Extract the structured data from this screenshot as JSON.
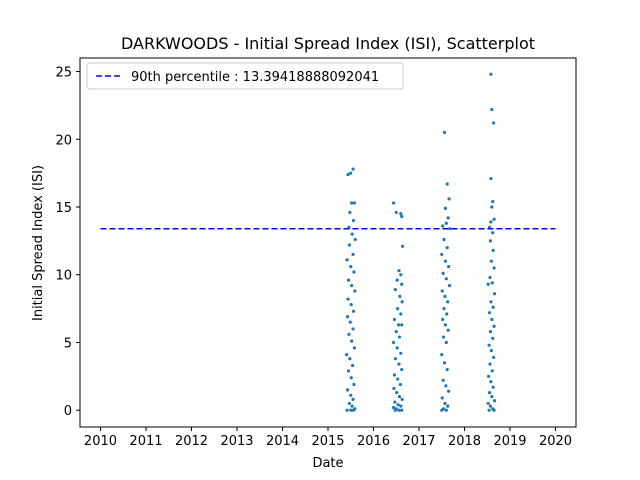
{
  "chart_data": {
    "type": "scatter",
    "title": "DARKWOODS - Initial Spread Index (ISI), Scatterplot",
    "xlabel": "Date",
    "ylabel": "Initial Spread Index (ISI)",
    "xlim": [
      2009.55,
      2020.45
    ],
    "ylim": [
      -1.24,
      26.0
    ],
    "xticks": [
      2010,
      2011,
      2012,
      2013,
      2014,
      2015,
      2016,
      2017,
      2018,
      2019,
      2020
    ],
    "xtick_labels": [
      "2010",
      "2011",
      "2012",
      "2013",
      "2014",
      "2015",
      "2016",
      "2017",
      "2018",
      "2019",
      "2020"
    ],
    "yticks": [
      0,
      5,
      10,
      15,
      20,
      25
    ],
    "ytick_labels": [
      "0",
      "5",
      "10",
      "15",
      "20",
      "25"
    ],
    "grid": false,
    "legend": {
      "position": "top-left",
      "entries": [
        "90th percentile : 13.39418888092041"
      ]
    },
    "reference_line": {
      "y": 13.39418888092041,
      "x_range": [
        2010,
        2020
      ],
      "color": "#0000ff",
      "style": "dashed"
    },
    "marker_color": "#1f77b4",
    "series": [
      {
        "points": [
          [
            2015.44,
            17.4
          ],
          [
            2015.5,
            17.5
          ],
          [
            2015.55,
            17.8
          ],
          [
            2015.52,
            15.3
          ],
          [
            2015.58,
            15.3
          ],
          [
            2015.48,
            14.6
          ],
          [
            2015.56,
            14.0
          ],
          [
            2015.46,
            13.5
          ],
          [
            2015.53,
            13.0
          ],
          [
            2015.6,
            12.6
          ],
          [
            2015.47,
            12.2
          ],
          [
            2015.55,
            11.5
          ],
          [
            2015.42,
            11.1
          ],
          [
            2015.5,
            10.6
          ],
          [
            2015.57,
            10.2
          ],
          [
            2015.45,
            9.6
          ],
          [
            2015.52,
            9.2
          ],
          [
            2015.59,
            8.8
          ],
          [
            2015.44,
            8.2
          ],
          [
            2015.51,
            7.8
          ],
          [
            2015.56,
            7.3
          ],
          [
            2015.43,
            6.9
          ],
          [
            2015.49,
            6.5
          ],
          [
            2015.55,
            6.0
          ],
          [
            2015.46,
            5.6
          ],
          [
            2015.52,
            5.1
          ],
          [
            2015.58,
            4.6
          ],
          [
            2015.41,
            4.1
          ],
          [
            2015.48,
            3.8
          ],
          [
            2015.54,
            3.3
          ],
          [
            2015.45,
            2.9
          ],
          [
            2015.51,
            2.4
          ],
          [
            2015.57,
            1.9
          ],
          [
            2015.43,
            1.5
          ],
          [
            2015.5,
            1.1
          ],
          [
            2015.55,
            0.8
          ],
          [
            2015.47,
            0.5
          ],
          [
            2015.53,
            0.3
          ],
          [
            2015.59,
            0.1
          ],
          [
            2015.42,
            0.0
          ],
          [
            2015.5,
            0.0
          ],
          [
            2015.56,
            0.0
          ],
          [
            2016.44,
            15.3
          ],
          [
            2016.5,
            14.6
          ],
          [
            2016.6,
            14.5
          ],
          [
            2016.62,
            14.3
          ],
          [
            2016.64,
            12.1
          ],
          [
            2016.56,
            10.3
          ],
          [
            2016.6,
            10.0
          ],
          [
            2016.52,
            9.6
          ],
          [
            2016.62,
            9.3
          ],
          [
            2016.48,
            8.9
          ],
          [
            2016.58,
            8.4
          ],
          [
            2016.63,
            8.0
          ],
          [
            2016.53,
            7.5
          ],
          [
            2016.6,
            7.1
          ],
          [
            2016.46,
            6.7
          ],
          [
            2016.55,
            6.3
          ],
          [
            2016.62,
            6.3
          ],
          [
            2016.5,
            5.8
          ],
          [
            2016.57,
            5.4
          ],
          [
            2016.44,
            5.0
          ],
          [
            2016.52,
            4.6
          ],
          [
            2016.6,
            4.2
          ],
          [
            2016.48,
            3.8
          ],
          [
            2016.56,
            3.4
          ],
          [
            2016.62,
            3.0
          ],
          [
            2016.46,
            2.6
          ],
          [
            2016.53,
            2.3
          ],
          [
            2016.59,
            1.9
          ],
          [
            2016.45,
            1.6
          ],
          [
            2016.51,
            1.3
          ],
          [
            2016.57,
            1.0
          ],
          [
            2016.63,
            0.8
          ],
          [
            2016.47,
            0.6
          ],
          [
            2016.54,
            0.4
          ],
          [
            2016.6,
            0.3
          ],
          [
            2016.44,
            0.2
          ],
          [
            2016.5,
            0.1
          ],
          [
            2016.56,
            0.0
          ],
          [
            2016.62,
            0.0
          ],
          [
            2016.48,
            0.0
          ],
          [
            2017.56,
            20.5
          ],
          [
            2017.62,
            16.7
          ],
          [
            2017.66,
            15.6
          ],
          [
            2017.58,
            14.9
          ],
          [
            2017.64,
            14.2
          ],
          [
            2017.6,
            13.8
          ],
          [
            2017.52,
            13.6
          ],
          [
            2017.68,
            13.4
          ],
          [
            2017.55,
            12.6
          ],
          [
            2017.62,
            12.0
          ],
          [
            2017.5,
            11.5
          ],
          [
            2017.58,
            11.0
          ],
          [
            2017.65,
            10.6
          ],
          [
            2017.53,
            10.1
          ],
          [
            2017.6,
            9.7
          ],
          [
            2017.67,
            9.2
          ],
          [
            2017.51,
            8.8
          ],
          [
            2017.57,
            8.4
          ],
          [
            2017.63,
            8.0
          ],
          [
            2017.55,
            7.5
          ],
          [
            2017.61,
            7.1
          ],
          [
            2017.52,
            6.7
          ],
          [
            2017.58,
            6.3
          ],
          [
            2017.64,
            5.9
          ],
          [
            2017.54,
            5.4
          ],
          [
            2017.6,
            5.0
          ],
          [
            2017.5,
            4.1
          ],
          [
            2017.56,
            3.5
          ],
          [
            2017.62,
            3.0
          ],
          [
            2017.53,
            2.2
          ],
          [
            2017.59,
            1.8
          ],
          [
            2017.65,
            1.4
          ],
          [
            2017.51,
            0.9
          ],
          [
            2017.57,
            0.5
          ],
          [
            2017.63,
            0.3
          ],
          [
            2017.54,
            0.1
          ],
          [
            2017.6,
            0.0
          ],
          [
            2017.5,
            0.0
          ],
          [
            2018.58,
            24.8
          ],
          [
            2018.6,
            22.2
          ],
          [
            2018.64,
            21.2
          ],
          [
            2018.58,
            17.1
          ],
          [
            2018.62,
            15.4
          ],
          [
            2018.6,
            15.0
          ],
          [
            2018.65,
            14.1
          ],
          [
            2018.58,
            13.9
          ],
          [
            2018.55,
            13.5
          ],
          [
            2018.62,
            13.1
          ],
          [
            2018.57,
            12.5
          ],
          [
            2018.63,
            11.8
          ],
          [
            2018.59,
            11.0
          ],
          [
            2018.65,
            10.5
          ],
          [
            2018.56,
            9.8
          ],
          [
            2018.61,
            9.4
          ],
          [
            2018.52,
            9.3
          ],
          [
            2018.66,
            8.6
          ],
          [
            2018.58,
            8.0
          ],
          [
            2018.63,
            7.6
          ],
          [
            2018.55,
            7.2
          ],
          [
            2018.6,
            6.7
          ],
          [
            2018.65,
            6.2
          ],
          [
            2018.57,
            5.8
          ],
          [
            2018.62,
            5.3
          ],
          [
            2018.54,
            4.8
          ],
          [
            2018.59,
            4.4
          ],
          [
            2018.64,
            3.9
          ],
          [
            2018.56,
            3.4
          ],
          [
            2018.61,
            2.9
          ],
          [
            2018.53,
            2.5
          ],
          [
            2018.58,
            2.1
          ],
          [
            2018.63,
            1.7
          ],
          [
            2018.55,
            1.3
          ],
          [
            2018.6,
            1.0
          ],
          [
            2018.66,
            0.7
          ],
          [
            2018.52,
            0.5
          ],
          [
            2018.57,
            0.3
          ],
          [
            2018.62,
            0.1
          ],
          [
            2018.54,
            0.0
          ],
          [
            2018.65,
            0.0
          ]
        ]
      }
    ]
  }
}
